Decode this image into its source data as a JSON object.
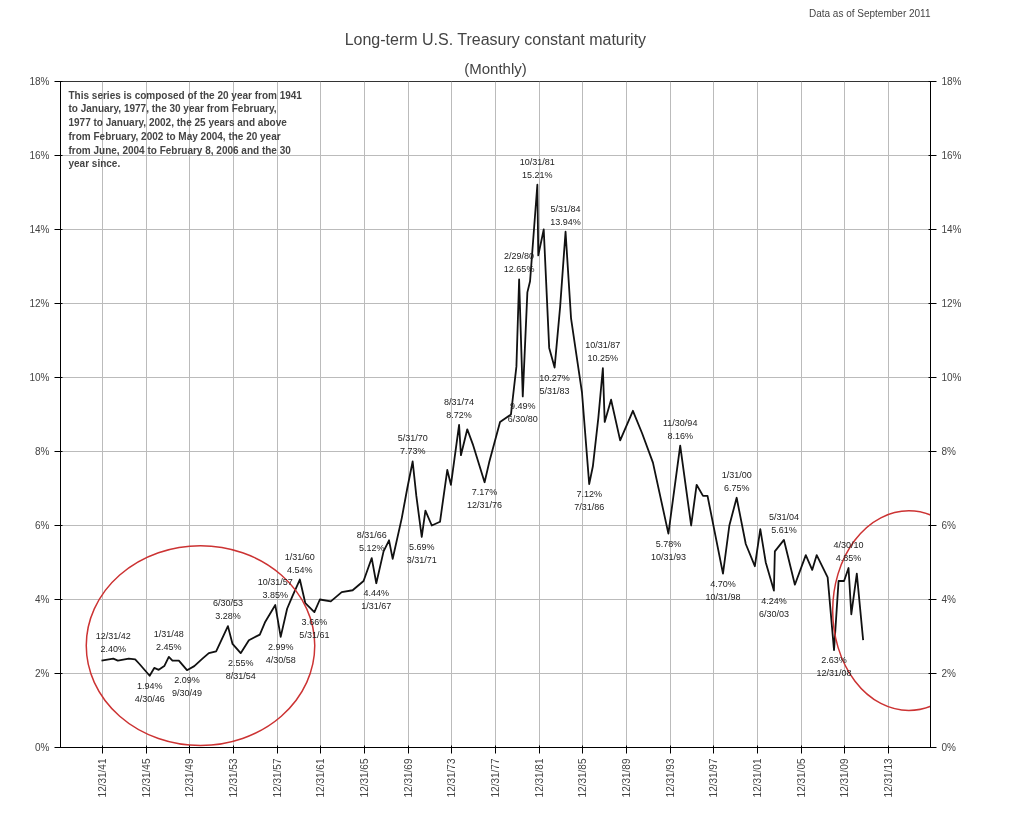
{
  "chart_data": {
    "type": "line",
    "title": "Long-term U.S. Treasury constant maturity",
    "subtitle": "(Monthly)",
    "x": [
      "1941-12",
      "1942-12-31",
      "1943-06",
      "1944-06",
      "1945-01",
      "1945-06",
      "1946-04-30",
      "1946-10",
      "1947-03",
      "1947-09",
      "1948-01-31",
      "1948-06",
      "1949-01",
      "1949-09-30",
      "1950-06",
      "1951-03",
      "1951-10",
      "1952-06",
      "1953-06-30",
      "1953-12",
      "1954-08-31",
      "1955-06",
      "1956-06",
      "1956-12",
      "1957-10-31",
      "1958-04-30",
      "1958-12",
      "1959-06",
      "1960-01-31",
      "1960-08",
      "1961-05-31",
      "1961-12",
      "1962-12",
      "1963-12",
      "1964-12",
      "1965-12",
      "1966-08-31",
      "1967-01-31",
      "1967-10",
      "1968-04",
      "1968-08",
      "1969-06",
      "1969-12",
      "1970-05-31",
      "1970-10",
      "1971-03-31",
      "1971-08",
      "1972-03",
      "1972-12",
      "1973-08",
      "1973-12",
      "1974-08-31",
      "1974-11",
      "1975-06",
      "1975-12",
      "1976-12-31",
      "1977-06",
      "1978-06",
      "1979-06",
      "1979-12",
      "1980-02-29",
      "1980-06-30",
      "1980-12",
      "1981-03",
      "1981-10-31",
      "1981-12",
      "1982-06",
      "1982-12",
      "1983-05-31",
      "1983-12",
      "1984-05-31",
      "1984-12",
      "1985-06",
      "1985-12",
      "1986-07-31",
      "1986-12",
      "1987-06",
      "1987-10-31",
      "1988-01",
      "1988-08",
      "1989-06",
      "1990-08",
      "1991-06",
      "1992-06",
      "1993-10-31",
      "1994-11-30",
      "1995-12",
      "1996-06",
      "1997-01",
      "1997-06",
      "1998-10-31",
      "1999-06",
      "2000-01-31",
      "2000-12",
      "2001-10",
      "2002-04",
      "2002-10",
      "2003-06-30",
      "2003-08",
      "2004-05-31",
      "2005-06",
      "2006-06",
      "2007-01",
      "2007-06",
      "2008-06",
      "2008-12-31",
      "2009-06",
      "2009-12",
      "2010-04-30",
      "2010-08",
      "2011-02",
      "2011-09"
    ],
    "series": [
      {
        "color": "#111111",
        "values": [
          2.35,
          2.4,
          2.35,
          2.4,
          2.38,
          2.25,
          1.94,
          2.15,
          2.1,
          2.2,
          2.45,
          2.35,
          2.35,
          2.09,
          2.2,
          2.4,
          2.55,
          2.6,
          3.28,
          2.8,
          2.55,
          2.9,
          3.05,
          3.4,
          3.85,
          2.99,
          3.75,
          4.1,
          4.54,
          3.9,
          3.66,
          4.0,
          3.95,
          4.2,
          4.25,
          4.5,
          5.12,
          4.44,
          5.3,
          5.6,
          5.1,
          6.2,
          7.0,
          7.73,
          6.8,
          5.69,
          6.4,
          6.0,
          6.1,
          7.5,
          7.1,
          8.72,
          7.9,
          8.6,
          8.2,
          7.17,
          7.7,
          8.8,
          9.0,
          10.3,
          12.65,
          9.49,
          12.3,
          12.6,
          15.21,
          13.3,
          14.0,
          10.8,
          10.27,
          11.9,
          13.94,
          11.6,
          10.6,
          9.6,
          7.12,
          7.6,
          8.9,
          10.25,
          8.8,
          9.4,
          8.3,
          9.1,
          8.5,
          7.7,
          5.78,
          8.16,
          6.0,
          7.1,
          6.8,
          6.8,
          4.7,
          6.0,
          6.75,
          5.5,
          4.9,
          5.9,
          5.0,
          4.24,
          5.3,
          5.61,
          4.4,
          5.2,
          4.8,
          5.2,
          4.6,
          2.63,
          4.5,
          4.5,
          4.85,
          3.6,
          4.7,
          2.9
        ]
      }
    ],
    "xlim": [
      "1938-03",
      "2017-11"
    ],
    "xticks": [
      {
        "value": "1941-12-31",
        "label": "12/31/41"
      },
      {
        "value": "1945-12-31",
        "label": "12/31/45"
      },
      {
        "value": "1949-12-31",
        "label": "12/31/49"
      },
      {
        "value": "1953-12-31",
        "label": "12/31/53"
      },
      {
        "value": "1957-12-31",
        "label": "12/31/57"
      },
      {
        "value": "1961-12-31",
        "label": "12/31/61"
      },
      {
        "value": "1965-12-31",
        "label": "12/31/65"
      },
      {
        "value": "1969-12-31",
        "label": "12/31/69"
      },
      {
        "value": "1973-12-31",
        "label": "12/31/73"
      },
      {
        "value": "1977-12-31",
        "label": "12/31/77"
      },
      {
        "value": "1981-12-31",
        "label": "12/31/81"
      },
      {
        "value": "1985-12-31",
        "label": "12/31/85"
      },
      {
        "value": "1989-12-31",
        "label": "12/31/89"
      },
      {
        "value": "1993-12-31",
        "label": "12/31/93"
      },
      {
        "value": "1997-12-31",
        "label": "12/31/97"
      },
      {
        "value": "2001-12-31",
        "label": "12/31/01"
      },
      {
        "value": "2005-12-31",
        "label": "12/31/05"
      },
      {
        "value": "2009-12-31",
        "label": "12/31/09"
      },
      {
        "value": "2013-12-31",
        "label": "12/31/13"
      }
    ],
    "ylim": [
      0,
      18
    ],
    "yticks": [
      {
        "value": 0,
        "label": "0%"
      },
      {
        "value": 2,
        "label": "2%"
      },
      {
        "value": 4,
        "label": "4%"
      },
      {
        "value": 6,
        "label": "6%"
      },
      {
        "value": 8,
        "label": "8%"
      },
      {
        "value": 10,
        "label": "10%"
      },
      {
        "value": 12,
        "label": "12%"
      },
      {
        "value": 14,
        "label": "14%"
      },
      {
        "value": 16,
        "label": "16%"
      },
      {
        "value": 18,
        "label": "18%"
      }
    ],
    "y2lim": [
      0,
      18
    ],
    "y2ticks": [
      {
        "value": 0,
        "label": "0%"
      },
      {
        "value": 2,
        "label": "2%"
      },
      {
        "value": 4,
        "label": "4%"
      },
      {
        "value": 6,
        "label": "6%"
      },
      {
        "value": 8,
        "label": "8%"
      },
      {
        "value": 10,
        "label": "10%"
      },
      {
        "value": 12,
        "label": "12%"
      },
      {
        "value": 14,
        "label": "14%"
      },
      {
        "value": 16,
        "label": "16%"
      },
      {
        "value": 18,
        "label": "18%"
      }
    ],
    "grid": true,
    "annotations": [
      "Data as of September 2011",
      "This series is composed of the 20 year from 1941 to January, 1977, the 30 year from February, 1977 to January, 2002, the 25 years and above from February, 2002 to May 2004, the 20 year from June, 2004 to February 8, 2006 and the 30 year since.",
      {
        "text": "12/31/42\n2.40%",
        "x": "1942-12-31",
        "y": 2.4
      },
      {
        "text": "1.94%\n4/30/46",
        "x": "1946-04-30",
        "y": 1.94
      },
      {
        "text": "1/31/48\n2.45%",
        "x": "1948-01-31",
        "y": 2.45
      },
      {
        "text": "2.09%\n9/30/49",
        "x": "1949-09-30",
        "y": 2.09
      },
      {
        "text": "6/30/53\n3.28%",
        "x": "1953-06-30",
        "y": 3.28
      },
      {
        "text": "2.55%\n8/31/54",
        "x": "1954-08-31",
        "y": 2.55
      },
      {
        "text": "10/31/57\n3.85%",
        "x": "1957-10-31",
        "y": 3.85
      },
      {
        "text": "2.99%\n4/30/58",
        "x": "1958-04-30",
        "y": 2.99
      },
      {
        "text": "1/31/60\n4.54%",
        "x": "1960-01-31",
        "y": 4.54
      },
      {
        "text": "3.66%\n5/31/61",
        "x": "1961-05-31",
        "y": 3.66
      },
      {
        "text": "8/31/66\n5.12%",
        "x": "1966-08-31",
        "y": 5.12
      },
      {
        "text": "4.44%\n1/31/67",
        "x": "1967-01-31",
        "y": 4.44
      },
      {
        "text": "5/31/70\n7.73%",
        "x": "1970-05-31",
        "y": 7.73
      },
      {
        "text": "5.69%\n3/31/71",
        "x": "1971-03-31",
        "y": 5.69
      },
      {
        "text": "8/31/74\n8.72%",
        "x": "1974-08-31",
        "y": 8.72
      },
      {
        "text": "7.17%\n12/31/76",
        "x": "1976-12-31",
        "y": 7.17
      },
      {
        "text": "2/29/80\n12.65%",
        "x": "1980-02-29",
        "y": 12.65
      },
      {
        "text": "9.49%\n6/30/80",
        "x": "1980-06-30",
        "y": 9.49
      },
      {
        "text": "10/31/81\n15.21%",
        "x": "1981-10-31",
        "y": 15.21
      },
      {
        "text": "10.27%\n5/31/83",
        "x": "1983-05-31",
        "y": 10.27
      },
      {
        "text": "5/31/84\n13.94%",
        "x": "1984-05-31",
        "y": 13.94
      },
      {
        "text": "7.12%\n7/31/86",
        "x": "1986-07-31",
        "y": 7.12
      },
      {
        "text": "10/31/87\n10.25%",
        "x": "1987-10-31",
        "y": 10.25
      },
      {
        "text": "5.78%\n10/31/93",
        "x": "1993-10-31",
        "y": 5.78
      },
      {
        "text": "11/30/94\n8.16%",
        "x": "1994-11-30",
        "y": 8.16
      },
      {
        "text": "4.70%\n10/31/98",
        "x": "1998-10-31",
        "y": 4.7
      },
      {
        "text": "1/31/00\n6.75%",
        "x": "2000-01-31",
        "y": 6.75
      },
      {
        "text": "4.24%\n6/30/03",
        "x": "2003-06-30",
        "y": 4.24
      },
      {
        "text": "5/31/04\n5.61%",
        "x": "2004-05-31",
        "y": 5.61
      },
      {
        "text": "2.63%\n12/31/08",
        "x": "2008-12-31",
        "y": 2.63
      },
      {
        "text": "4/30/10\n4.85%",
        "x": "2010-04-30",
        "y": 4.85
      }
    ]
  }
}
